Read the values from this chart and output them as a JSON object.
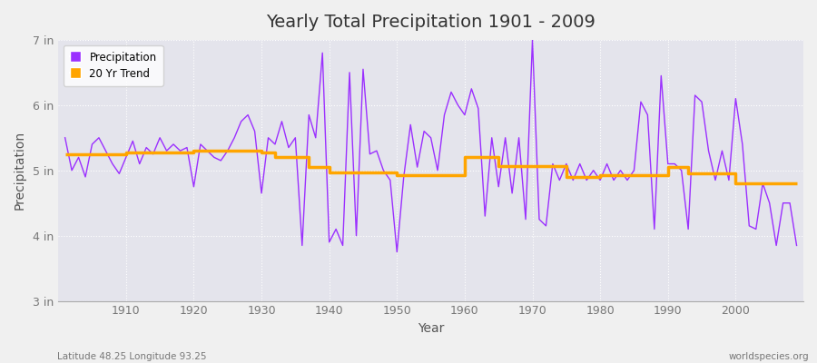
{
  "title": "Yearly Total Precipitation 1901 - 2009",
  "xlabel": "Year",
  "ylabel": "Precipitation",
  "years": [
    1901,
    1902,
    1903,
    1904,
    1905,
    1906,
    1907,
    1908,
    1909,
    1910,
    1911,
    1912,
    1913,
    1914,
    1915,
    1916,
    1917,
    1918,
    1919,
    1920,
    1921,
    1922,
    1923,
    1924,
    1925,
    1926,
    1927,
    1928,
    1929,
    1930,
    1931,
    1932,
    1933,
    1934,
    1935,
    1936,
    1937,
    1938,
    1939,
    1940,
    1941,
    1942,
    1943,
    1944,
    1945,
    1946,
    1947,
    1948,
    1949,
    1950,
    1951,
    1952,
    1953,
    1954,
    1955,
    1956,
    1957,
    1958,
    1959,
    1960,
    1961,
    1962,
    1963,
    1964,
    1965,
    1966,
    1967,
    1968,
    1969,
    1970,
    1971,
    1972,
    1973,
    1974,
    1975,
    1976,
    1977,
    1978,
    1979,
    1980,
    1981,
    1982,
    1983,
    1984,
    1985,
    1986,
    1987,
    1988,
    1989,
    1990,
    1991,
    1992,
    1993,
    1994,
    1995,
    1996,
    1997,
    1998,
    1999,
    2000,
    2001,
    2002,
    2003,
    2004,
    2005,
    2006,
    2007,
    2008,
    2009
  ],
  "precip_in": [
    5.5,
    5.0,
    5.2,
    4.9,
    5.4,
    5.5,
    5.3,
    5.1,
    4.95,
    5.2,
    5.45,
    5.1,
    5.35,
    5.25,
    5.5,
    5.3,
    5.4,
    5.3,
    5.35,
    4.75,
    5.4,
    5.3,
    5.2,
    5.15,
    5.3,
    5.5,
    5.75,
    5.85,
    5.6,
    4.65,
    5.5,
    5.4,
    5.75,
    5.35,
    5.5,
    3.85,
    5.85,
    5.5,
    6.8,
    3.9,
    4.1,
    3.85,
    6.5,
    4.0,
    6.55,
    5.25,
    5.3,
    5.0,
    4.85,
    3.75,
    4.9,
    5.7,
    5.05,
    5.6,
    5.5,
    5.0,
    5.85,
    6.2,
    6.0,
    5.85,
    6.25,
    5.95,
    4.3,
    5.5,
    4.75,
    5.5,
    4.65,
    5.5,
    4.25,
    7.0,
    4.25,
    4.15,
    5.1,
    4.85,
    5.1,
    4.85,
    5.1,
    4.85,
    5.0,
    4.85,
    5.1,
    4.85,
    5.0,
    4.85,
    5.0,
    6.05,
    5.85,
    4.1,
    6.45,
    5.1,
    5.1,
    5.0,
    4.1,
    6.15,
    6.05,
    5.3,
    4.85,
    5.3,
    4.85,
    6.1,
    5.4,
    4.15,
    4.1,
    4.8,
    4.5,
    3.85,
    4.5,
    4.5,
    3.85
  ],
  "trend_years": [
    1901,
    1910,
    1910,
    1920,
    1920,
    1930,
    1930,
    1932,
    1932,
    1937,
    1937,
    1940,
    1940,
    1950,
    1950,
    1960,
    1960,
    1965,
    1965,
    1975,
    1975,
    1980,
    1980,
    1990,
    1990,
    1993,
    1993,
    2000,
    2000,
    2009
  ],
  "trend_in": [
    5.25,
    5.25,
    5.28,
    5.28,
    5.3,
    5.3,
    5.27,
    5.27,
    5.2,
    5.2,
    5.05,
    5.05,
    4.97,
    4.97,
    4.93,
    4.93,
    5.2,
    5.2,
    5.07,
    5.07,
    4.9,
    4.9,
    4.93,
    4.93,
    5.05,
    5.05,
    4.95,
    4.95,
    4.8,
    4.8
  ],
  "precip_color": "#9B30FF",
  "trend_color": "#FFA500",
  "bg_color": "#F0F0F0",
  "plot_bg_color": "#E4E4EC",
  "grid_color": "#FFFFFF",
  "ylim_in": [
    3.0,
    7.0
  ],
  "yticks_in": [
    3.0,
    4.0,
    5.0,
    6.0,
    7.0
  ],
  "ytick_labels": [
    "3 in",
    "4 in",
    "5 in",
    "6 in",
    "7 in"
  ],
  "xticks": [
    1910,
    1920,
    1930,
    1940,
    1950,
    1960,
    1970,
    1980,
    1990,
    2000
  ],
  "footnote_left": "Latitude 48.25 Longitude 93.25",
  "footnote_right": "worldspecies.org"
}
